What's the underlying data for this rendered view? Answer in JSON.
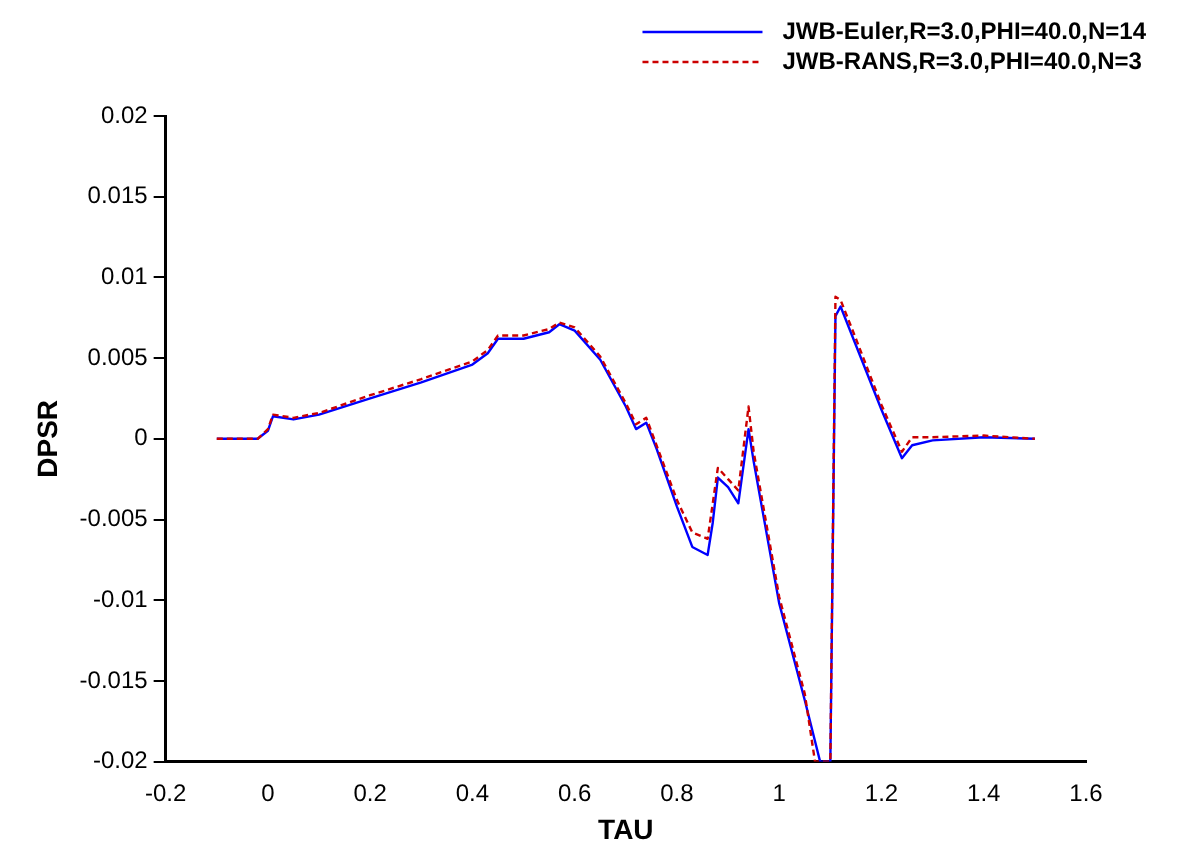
{
  "chart_data": {
    "type": "line",
    "xlabel": "TAU",
    "ylabel": "DPSR",
    "xlim": [
      -0.2,
      1.6
    ],
    "xticks": [
      -0.2,
      0,
      0.2,
      0.4,
      0.6,
      0.8,
      1,
      1.2,
      1.4,
      1.6
    ],
    "ylim": [
      -0.02,
      0.02
    ],
    "yticks": [
      -0.02,
      -0.015,
      -0.01,
      -0.005,
      0,
      0.005,
      0.01,
      0.015,
      0.02
    ],
    "grid": false,
    "legend": "top right",
    "marker": "none",
    "series": [
      {
        "name": "JWB-Euler,R=3.0,PHI=40.0,N=14",
        "color": "#0000ff",
        "line_style": "solid",
        "x": [
          -0.1,
          -0.02,
          0,
          0.01,
          0.05,
          0.1,
          0.2,
          0.3,
          0.4,
          0.43,
          0.45,
          0.5,
          0.55,
          0.57,
          0.6,
          0.65,
          0.7,
          0.72,
          0.74,
          0.76,
          0.8,
          0.83,
          0.86,
          0.87,
          0.88,
          0.9,
          0.92,
          0.94,
          0.95,
          1.0,
          1.05,
          1.08,
          1.1,
          1.11,
          1.12,
          1.15,
          1.2,
          1.24,
          1.26,
          1.3,
          1.4,
          1.5
        ],
        "values": [
          0,
          0,
          0.0005,
          0.0014,
          0.0012,
          0.0015,
          0.0025,
          0.0035,
          0.0046,
          0.0053,
          0.0062,
          0.0062,
          0.0066,
          0.0071,
          0.0067,
          0.0049,
          0.002,
          0.0006,
          0.001,
          -0.0006,
          -0.0042,
          -0.0067,
          -0.0072,
          -0.0052,
          -0.0024,
          -0.003,
          -0.004,
          0.0006,
          -0.0014,
          -0.0102,
          -0.0162,
          -0.02,
          -0.02,
          0.0076,
          0.0082,
          0.0058,
          0.0018,
          -0.0012,
          -0.0004,
          -0.0001,
          0.0001,
          0
        ]
      },
      {
        "name": "JWB-RANS,R=3.0,PHI=40.0,N=3",
        "color": "#cc0000",
        "line_style": "dashed",
        "x": [
          -0.1,
          -0.02,
          0,
          0.01,
          0.05,
          0.1,
          0.2,
          0.3,
          0.4,
          0.43,
          0.45,
          0.5,
          0.55,
          0.57,
          0.6,
          0.65,
          0.7,
          0.72,
          0.74,
          0.76,
          0.8,
          0.83,
          0.86,
          0.87,
          0.88,
          0.9,
          0.92,
          0.94,
          0.95,
          1.0,
          1.05,
          1.07,
          1.1,
          1.11,
          1.12,
          1.15,
          1.2,
          1.24,
          1.26,
          1.3,
          1.4,
          1.5
        ],
        "values": [
          0,
          0,
          0.0006,
          0.0015,
          0.0013,
          0.0016,
          0.0027,
          0.0037,
          0.0048,
          0.0055,
          0.0064,
          0.0064,
          0.0068,
          0.0072,
          0.0069,
          0.0051,
          0.0022,
          0.0009,
          0.0013,
          -0.0004,
          -0.0038,
          -0.0058,
          -0.0062,
          -0.004,
          -0.0018,
          -0.0025,
          -0.0032,
          0.002,
          -0.0008,
          -0.0098,
          -0.0158,
          -0.02,
          -0.02,
          0.0088,
          0.0086,
          0.0062,
          0.0021,
          -0.0008,
          0.0001,
          0.0001,
          0.0002,
          0
        ]
      }
    ]
  }
}
